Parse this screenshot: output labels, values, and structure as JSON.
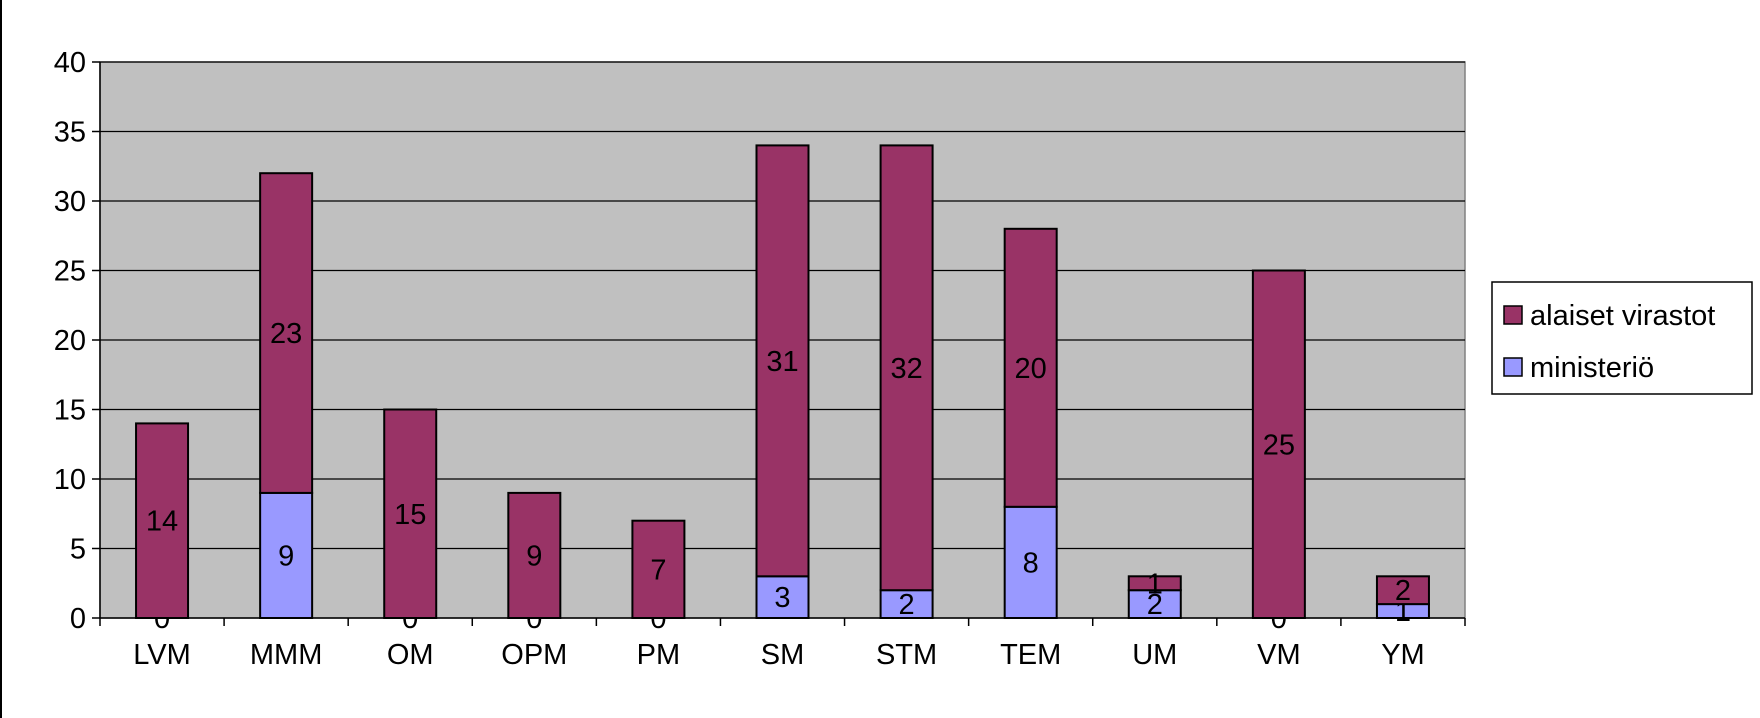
{
  "chart_data": {
    "type": "bar",
    "stacked": true,
    "categories": [
      "LVM",
      "MMM",
      "OM",
      "OPM",
      "PM",
      "SM",
      "STM",
      "TEM",
      "UM",
      "VM",
      "YM"
    ],
    "series": [
      {
        "name": "ministeriö",
        "values": [
          0,
          9,
          0,
          0,
          0,
          3,
          2,
          8,
          2,
          0,
          1
        ],
        "color": "#9999ff"
      },
      {
        "name": "alaiset virastot",
        "values": [
          14,
          23,
          15,
          9,
          7,
          31,
          32,
          20,
          1,
          25,
          2
        ],
        "color": "#993366"
      }
    ],
    "ylim": [
      0,
      40
    ],
    "yticks": [
      "0",
      "5",
      "10",
      "15",
      "20",
      "25",
      "30",
      "35",
      "40"
    ],
    "title": "",
    "xlabel": "",
    "ylabel": "",
    "grid": true,
    "plot_background": "#c0c0c0",
    "legend_position": "right",
    "legend_order": [
      "alaiset virastot",
      "ministeriö"
    ]
  }
}
